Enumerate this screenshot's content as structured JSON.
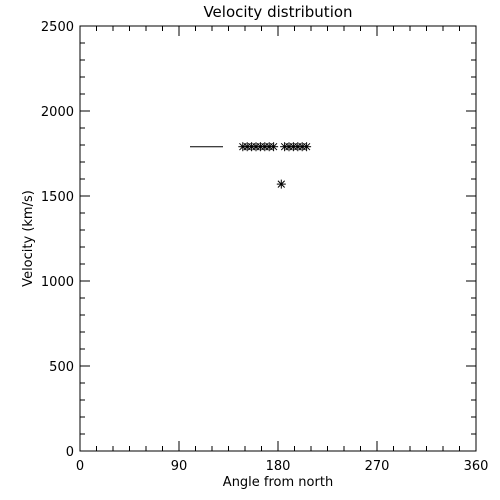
{
  "chart_data": {
    "type": "scatter",
    "title": "Velocity distribution",
    "xlabel": "Angle from north",
    "ylabel": "Velocity (km/s)",
    "xlim": [
      0,
      360
    ],
    "ylim": [
      0,
      2500
    ],
    "xticks": [
      0,
      90,
      180,
      270,
      360
    ],
    "yticks": [
      0,
      500,
      1000,
      1500,
      2000,
      2500
    ],
    "grid": false,
    "legend": "none",
    "line_segment": {
      "x": [
        100,
        130
      ],
      "y": [
        1790,
        1790
      ]
    },
    "points": [
      {
        "x": 148,
        "y": 1790
      },
      {
        "x": 152,
        "y": 1790
      },
      {
        "x": 156,
        "y": 1790
      },
      {
        "x": 160,
        "y": 1790
      },
      {
        "x": 164,
        "y": 1790
      },
      {
        "x": 168,
        "y": 1790
      },
      {
        "x": 172,
        "y": 1790
      },
      {
        "x": 176,
        "y": 1790
      },
      {
        "x": 186,
        "y": 1790
      },
      {
        "x": 190,
        "y": 1790
      },
      {
        "x": 194,
        "y": 1790
      },
      {
        "x": 198,
        "y": 1790
      },
      {
        "x": 202,
        "y": 1790
      },
      {
        "x": 206,
        "y": 1790
      },
      {
        "x": 183,
        "y": 1570
      }
    ],
    "colors": {
      "ink": "#000000",
      "background": "#ffffff"
    },
    "marker": "asterisk"
  }
}
